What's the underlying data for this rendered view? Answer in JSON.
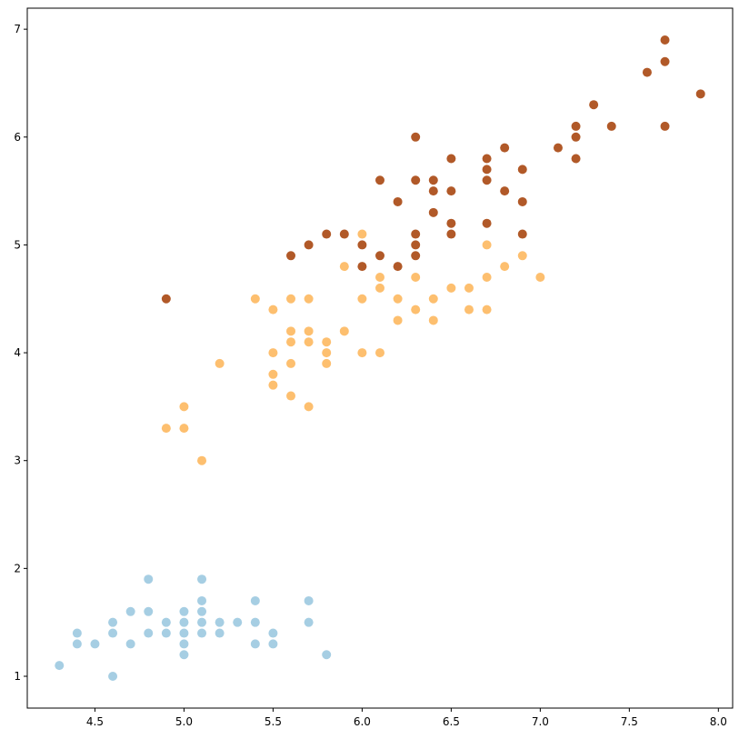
{
  "chart_data": {
    "type": "scatter",
    "title": "",
    "xlabel": "",
    "ylabel": "",
    "xlim": [
      4.12,
      8.08
    ],
    "ylim": [
      0.705,
      7.195
    ],
    "x_ticks": [
      4.5,
      5.0,
      5.5,
      6.0,
      6.5,
      7.0,
      7.5,
      8.0
    ],
    "x_tick_labels": [
      "4.5",
      "5.0",
      "5.5",
      "6.0",
      "6.5",
      "7.0",
      "7.5",
      "8.0"
    ],
    "y_ticks": [
      1,
      2,
      3,
      4,
      5,
      6,
      7
    ],
    "y_tick_labels": [
      "1",
      "2",
      "3",
      "4",
      "5",
      "6",
      "7"
    ],
    "grid": false,
    "legend": "none",
    "series": [
      {
        "color": "#a6cee3",
        "points": [
          [
            4.3,
            1.1
          ],
          [
            4.4,
            1.4
          ],
          [
            4.4,
            1.3
          ],
          [
            4.5,
            1.3
          ],
          [
            4.6,
            1.5
          ],
          [
            4.6,
            1.4
          ],
          [
            4.6,
            1.0
          ],
          [
            4.7,
            1.6
          ],
          [
            4.7,
            1.3
          ],
          [
            4.8,
            1.9
          ],
          [
            4.8,
            1.6
          ],
          [
            4.8,
            1.4
          ],
          [
            4.9,
            1.5
          ],
          [
            4.9,
            1.4
          ],
          [
            5.0,
            1.6
          ],
          [
            5.0,
            1.5
          ],
          [
            5.0,
            1.4
          ],
          [
            5.0,
            1.3
          ],
          [
            5.0,
            1.2
          ],
          [
            5.1,
            1.9
          ],
          [
            5.1,
            1.7
          ],
          [
            5.1,
            1.6
          ],
          [
            5.1,
            1.5
          ],
          [
            5.1,
            1.4
          ],
          [
            5.2,
            1.5
          ],
          [
            5.2,
            1.4
          ],
          [
            5.3,
            1.5
          ],
          [
            5.4,
            1.7
          ],
          [
            5.4,
            1.5
          ],
          [
            5.4,
            1.3
          ],
          [
            5.5,
            1.4
          ],
          [
            5.5,
            1.3
          ],
          [
            5.7,
            1.7
          ],
          [
            5.7,
            1.5
          ],
          [
            5.8,
            1.2
          ]
        ]
      },
      {
        "color": "#fdbf6f",
        "points": [
          [
            4.9,
            3.3
          ],
          [
            5.0,
            3.5
          ],
          [
            5.0,
            3.3
          ],
          [
            5.1,
            3.0
          ],
          [
            5.2,
            3.9
          ],
          [
            5.4,
            4.5
          ],
          [
            5.5,
            4.4
          ],
          [
            5.5,
            4.0
          ],
          [
            5.5,
            3.8
          ],
          [
            5.5,
            3.7
          ],
          [
            5.6,
            4.5
          ],
          [
            5.6,
            4.2
          ],
          [
            5.6,
            4.1
          ],
          [
            5.6,
            3.9
          ],
          [
            5.6,
            3.6
          ],
          [
            5.7,
            4.5
          ],
          [
            5.7,
            4.2
          ],
          [
            5.7,
            4.1
          ],
          [
            5.7,
            3.5
          ],
          [
            5.8,
            4.1
          ],
          [
            5.8,
            4.0
          ],
          [
            5.8,
            3.9
          ],
          [
            5.9,
            4.8
          ],
          [
            5.9,
            4.2
          ],
          [
            6.0,
            5.1
          ],
          [
            6.0,
            4.5
          ],
          [
            6.0,
            4.0
          ],
          [
            6.1,
            4.7
          ],
          [
            6.1,
            4.6
          ],
          [
            6.1,
            4.0
          ],
          [
            6.2,
            4.5
          ],
          [
            6.2,
            4.3
          ],
          [
            6.3,
            4.7
          ],
          [
            6.3,
            4.4
          ],
          [
            6.4,
            4.5
          ],
          [
            6.4,
            4.3
          ],
          [
            6.5,
            4.6
          ],
          [
            6.6,
            4.6
          ],
          [
            6.6,
            4.4
          ],
          [
            6.7,
            5.0
          ],
          [
            6.7,
            4.7
          ],
          [
            6.7,
            4.4
          ],
          [
            6.8,
            4.8
          ],
          [
            6.9,
            4.9
          ],
          [
            7.0,
            4.7
          ]
        ]
      },
      {
        "color": "#b15928",
        "points": [
          [
            4.9,
            4.5
          ],
          [
            5.6,
            4.9
          ],
          [
            5.7,
            5.0
          ],
          [
            5.8,
            5.1
          ],
          [
            5.9,
            5.1
          ],
          [
            6.0,
            5.0
          ],
          [
            6.0,
            4.8
          ],
          [
            6.1,
            5.6
          ],
          [
            6.1,
            4.9
          ],
          [
            6.2,
            5.4
          ],
          [
            6.2,
            4.8
          ],
          [
            6.3,
            6.0
          ],
          [
            6.3,
            5.6
          ],
          [
            6.3,
            5.1
          ],
          [
            6.3,
            5.0
          ],
          [
            6.3,
            4.9
          ],
          [
            6.4,
            5.6
          ],
          [
            6.4,
            5.5
          ],
          [
            6.4,
            5.3
          ],
          [
            6.5,
            5.8
          ],
          [
            6.5,
            5.5
          ],
          [
            6.5,
            5.2
          ],
          [
            6.5,
            5.1
          ],
          [
            6.7,
            5.8
          ],
          [
            6.7,
            5.7
          ],
          [
            6.7,
            5.6
          ],
          [
            6.7,
            5.2
          ],
          [
            6.8,
            5.9
          ],
          [
            6.8,
            5.5
          ],
          [
            6.9,
            5.7
          ],
          [
            6.9,
            5.4
          ],
          [
            6.9,
            5.1
          ],
          [
            7.1,
            5.9
          ],
          [
            7.2,
            6.1
          ],
          [
            7.2,
            6.0
          ],
          [
            7.2,
            5.8
          ],
          [
            7.3,
            6.3
          ],
          [
            7.4,
            6.1
          ],
          [
            7.6,
            6.6
          ],
          [
            7.7,
            6.9
          ],
          [
            7.7,
            6.7
          ],
          [
            7.7,
            6.1
          ],
          [
            7.9,
            6.4
          ]
        ]
      }
    ]
  }
}
